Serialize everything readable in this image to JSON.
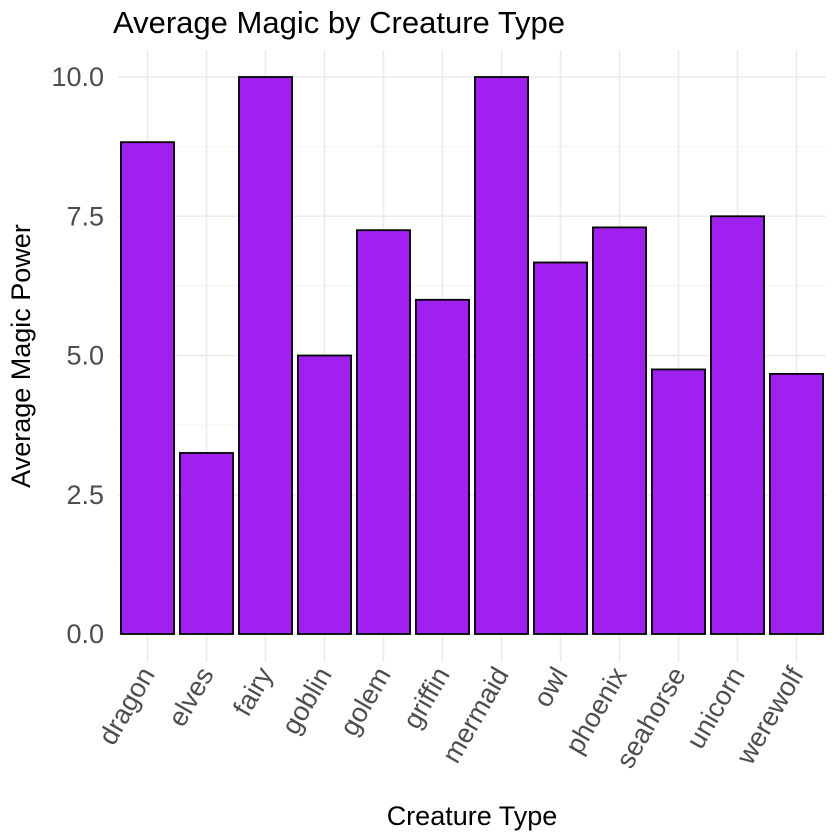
{
  "chart_data": {
    "type": "bar",
    "title": "Average Magic by Creature Type",
    "xlabel": "Creature Type",
    "ylabel": "Average Magic Power",
    "categories": [
      "dragon",
      "elves",
      "fairy",
      "goblin",
      "golem",
      "griffin",
      "mermaid",
      "owl",
      "phoenix",
      "seahorse",
      "unicorn",
      "werewolf"
    ],
    "values": [
      8.83,
      3.25,
      10.0,
      5.0,
      7.25,
      6.0,
      10.0,
      6.67,
      7.3,
      4.75,
      7.5,
      4.67
    ],
    "ylim": [
      0,
      10.0
    ],
    "yticks": [
      0,
      2.5,
      5,
      7.5,
      10
    ],
    "ytick_labels": [
      "0.0",
      "2.5",
      "5.0",
      "7.5",
      "10.0"
    ],
    "bar_color": "#A020F0",
    "bar_outline": "#000000",
    "grid": true
  }
}
